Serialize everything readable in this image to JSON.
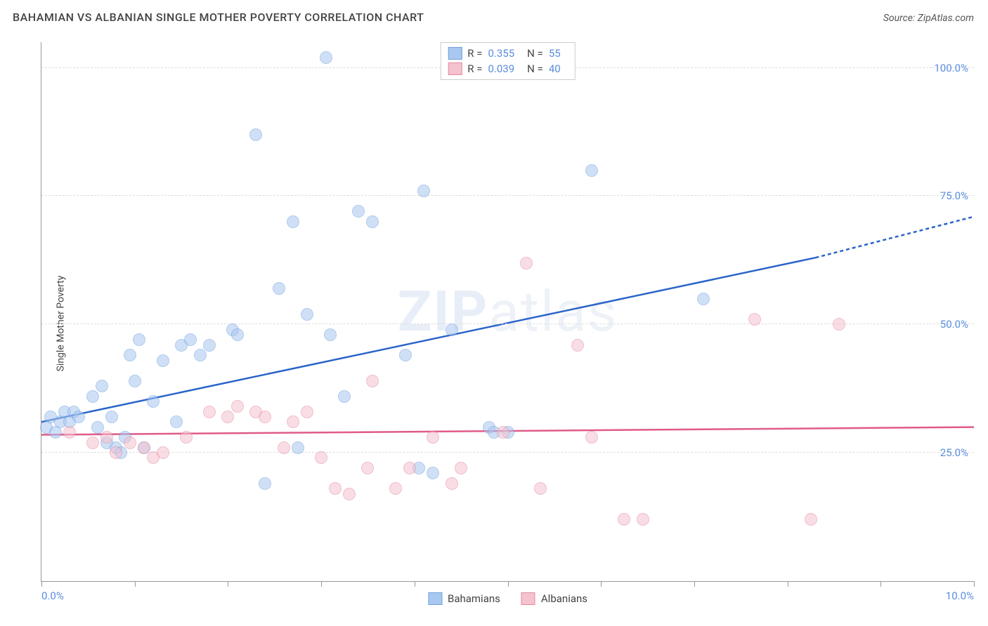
{
  "header": {
    "title": "BAHAMIAN VS ALBANIAN SINGLE MOTHER POVERTY CORRELATION CHART",
    "source": "Source: ZipAtlas.com"
  },
  "chart": {
    "type": "scatter",
    "y_label": "Single Mother Poverty",
    "watermark": "ZIPatlas",
    "xlim": [
      0,
      10
    ],
    "ylim": [
      0,
      105
    ],
    "x_ticks": [
      0,
      1,
      2,
      3,
      4,
      5,
      6,
      7,
      8,
      9,
      10
    ],
    "x_tick_labels": {
      "0": "0.0%",
      "10": "10.0%"
    },
    "y_gridlines": [
      25,
      50,
      75,
      100
    ],
    "y_tick_labels": {
      "25": "25.0%",
      "50": "50.0%",
      "75": "75.0%",
      "100": "100.0%"
    },
    "background_color": "#ffffff",
    "grid_color": "#dddddd",
    "axis_color": "#999999",
    "tick_label_color": "#5b8ddf",
    "point_radius": 9,
    "point_opacity": 0.55,
    "series": [
      {
        "name": "Bahamians",
        "fill": "#a9c8f0",
        "stroke": "#6f9fe0",
        "trend": {
          "x1": 0,
          "y1": 31,
          "x2": 8.3,
          "y2": 63,
          "x2_ext": 10,
          "y2_ext": 71,
          "color": "#2b64c9",
          "width": 2.5
        },
        "R": "0.355",
        "N": "55",
        "points": [
          [
            0.05,
            30
          ],
          [
            0.1,
            32
          ],
          [
            0.15,
            29
          ],
          [
            0.2,
            31
          ],
          [
            0.25,
            33
          ],
          [
            0.3,
            31
          ],
          [
            0.35,
            33
          ],
          [
            0.4,
            32
          ],
          [
            0.55,
            36
          ],
          [
            0.6,
            30
          ],
          [
            0.65,
            38
          ],
          [
            0.7,
            27
          ],
          [
            0.75,
            32
          ],
          [
            0.8,
            26
          ],
          [
            0.85,
            25
          ],
          [
            0.9,
            28
          ],
          [
            0.95,
            44
          ],
          [
            1.0,
            39
          ],
          [
            1.05,
            47
          ],
          [
            1.1,
            26
          ],
          [
            1.2,
            35
          ],
          [
            1.3,
            43
          ],
          [
            1.45,
            31
          ],
          [
            1.5,
            46
          ],
          [
            1.6,
            47
          ],
          [
            1.7,
            44
          ],
          [
            1.8,
            46
          ],
          [
            2.05,
            49
          ],
          [
            2.1,
            48
          ],
          [
            2.3,
            87
          ],
          [
            2.4,
            19
          ],
          [
            2.55,
            57
          ],
          [
            2.7,
            70
          ],
          [
            2.75,
            26
          ],
          [
            2.85,
            52
          ],
          [
            3.05,
            102
          ],
          [
            3.1,
            48
          ],
          [
            3.25,
            36
          ],
          [
            3.4,
            72
          ],
          [
            3.55,
            70
          ],
          [
            3.9,
            44
          ],
          [
            4.05,
            22
          ],
          [
            4.1,
            76
          ],
          [
            4.2,
            21
          ],
          [
            4.4,
            49
          ],
          [
            4.8,
            30
          ],
          [
            4.85,
            29
          ],
          [
            5.0,
            29
          ],
          [
            5.9,
            80
          ],
          [
            7.1,
            55
          ]
        ]
      },
      {
        "name": "Albanians",
        "fill": "#f5c2cf",
        "stroke": "#e48aa1",
        "trend": {
          "x1": 0,
          "y1": 28.5,
          "x2": 10,
          "y2": 30,
          "color": "#e05a8a",
          "width": 2.5
        },
        "R": "0.039",
        "N": "40",
        "points": [
          [
            0.3,
            29
          ],
          [
            0.55,
            27
          ],
          [
            0.7,
            28
          ],
          [
            0.8,
            25
          ],
          [
            0.95,
            27
          ],
          [
            1.1,
            26
          ],
          [
            1.2,
            24
          ],
          [
            1.3,
            25
          ],
          [
            1.55,
            28
          ],
          [
            1.8,
            33
          ],
          [
            2.0,
            32
          ],
          [
            2.1,
            34
          ],
          [
            2.3,
            33
          ],
          [
            2.4,
            32
          ],
          [
            2.6,
            26
          ],
          [
            2.7,
            31
          ],
          [
            2.85,
            33
          ],
          [
            3.0,
            24
          ],
          [
            3.15,
            18
          ],
          [
            3.3,
            17
          ],
          [
            3.5,
            22
          ],
          [
            3.55,
            39
          ],
          [
            3.8,
            18
          ],
          [
            3.95,
            22
          ],
          [
            4.2,
            28
          ],
          [
            4.4,
            19
          ],
          [
            4.5,
            22
          ],
          [
            4.95,
            29
          ],
          [
            5.2,
            62
          ],
          [
            5.35,
            18
          ],
          [
            5.75,
            46
          ],
          [
            5.9,
            28
          ],
          [
            6.25,
            12
          ],
          [
            6.45,
            12
          ],
          [
            7.65,
            51
          ],
          [
            8.25,
            12
          ],
          [
            8.55,
            50
          ]
        ]
      }
    ],
    "legend_top": [
      {
        "swatch_fill": "#a9c8f0",
        "swatch_stroke": "#6f9fe0",
        "R_label": "R =",
        "R": "0.355",
        "N_label": "N =",
        "N": "55"
      },
      {
        "swatch_fill": "#f5c2cf",
        "swatch_stroke": "#e48aa1",
        "R_label": "R =",
        "R": "0.039",
        "N_label": "N =",
        "N": "40"
      }
    ],
    "legend_bottom": [
      {
        "swatch_fill": "#a9c8f0",
        "swatch_stroke": "#6f9fe0",
        "label": "Bahamians"
      },
      {
        "swatch_fill": "#f5c2cf",
        "swatch_stroke": "#e48aa1",
        "label": "Albanians"
      }
    ]
  }
}
